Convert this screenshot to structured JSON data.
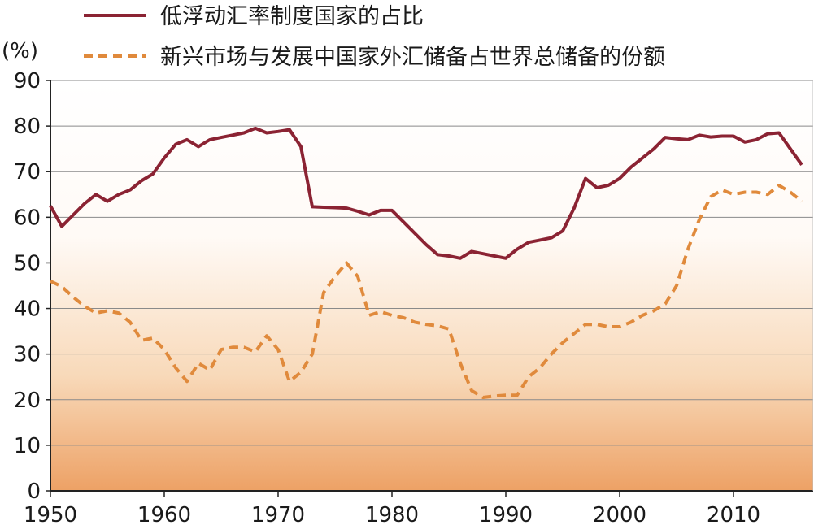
{
  "chart_data": {
    "type": "line",
    "unit_label": "(%)",
    "xlim": [
      1950,
      2017
    ],
    "ylim": [
      0,
      90
    ],
    "x_ticks": [
      1950,
      1960,
      1970,
      1980,
      1990,
      2000,
      2010
    ],
    "y_ticks": [
      0,
      10,
      20,
      30,
      40,
      50,
      60,
      70,
      80,
      90
    ],
    "grid": true,
    "legend_position": "top",
    "background": "gradient-orange-bottom",
    "series": [
      {
        "name": "低浮动汇率制度国家的占比",
        "color": "#8b2333",
        "style": "solid",
        "x": [
          1950,
          1951,
          1952,
          1953,
          1954,
          1955,
          1956,
          1957,
          1958,
          1959,
          1960,
          1961,
          1962,
          1963,
          1964,
          1965,
          1966,
          1967,
          1968,
          1969,
          1970,
          1971,
          1972,
          1973,
          1974,
          1975,
          1976,
          1977,
          1978,
          1979,
          1980,
          1981,
          1982,
          1983,
          1984,
          1985,
          1986,
          1987,
          1988,
          1989,
          1990,
          1991,
          1992,
          1993,
          1994,
          1995,
          1996,
          1997,
          1998,
          1999,
          2000,
          2001,
          2002,
          2003,
          2004,
          2005,
          2006,
          2007,
          2008,
          2009,
          2010,
          2011,
          2012,
          2013,
          2014,
          2015,
          2016
        ],
        "y": [
          62.5,
          58,
          60.5,
          63,
          65,
          63.5,
          65,
          66,
          68,
          69.5,
          73,
          76,
          77,
          75.5,
          77,
          77.5,
          78,
          78.5,
          79.5,
          78.5,
          78.8,
          79.2,
          75.5,
          62.3,
          62.2,
          62.1,
          62,
          61.3,
          60.5,
          61.5,
          61.5,
          59,
          56.5,
          54,
          51.8,
          51.5,
          51,
          52.5,
          52,
          51.5,
          51,
          53,
          54.5,
          55,
          55.5,
          57,
          62,
          68.5,
          66.5,
          67,
          68.5,
          71,
          73,
          75,
          77.5,
          77.2,
          77,
          78,
          77.6,
          77.8,
          77.8,
          76.5,
          77,
          78.3,
          78.5,
          75,
          71.5
        ]
      },
      {
        "name": "新兴市场与发展中国家外汇储备占世界总储备的份额",
        "color": "#e08a3c",
        "style": "dashed",
        "x": [
          1950,
          1951,
          1952,
          1953,
          1954,
          1955,
          1956,
          1957,
          1958,
          1959,
          1960,
          1961,
          1962,
          1963,
          1964,
          1965,
          1966,
          1967,
          1968,
          1969,
          1970,
          1971,
          1972,
          1973,
          1974,
          1975,
          1976,
          1977,
          1978,
          1979,
          1980,
          1981,
          1982,
          1983,
          1984,
          1985,
          1986,
          1987,
          1988,
          1989,
          1990,
          1991,
          1992,
          1993,
          1994,
          1995,
          1996,
          1997,
          1998,
          1999,
          2000,
          2001,
          2002,
          2003,
          2004,
          2005,
          2006,
          2007,
          2008,
          2009,
          2010,
          2011,
          2012,
          2013,
          2014,
          2015,
          2016
        ],
        "y": [
          46,
          44.8,
          42.5,
          40.5,
          39,
          39.5,
          39,
          37,
          33,
          33.5,
          31,
          27,
          24,
          28,
          26.5,
          31,
          31.5,
          31.5,
          30.5,
          34,
          31,
          24,
          26,
          30,
          43.5,
          47,
          50,
          47,
          38.5,
          39.3,
          38.5,
          38,
          37,
          36.5,
          36.2,
          35.5,
          28,
          22,
          20.5,
          20.8,
          21,
          21,
          25,
          27,
          30,
          32.5,
          34.5,
          36.5,
          36.5,
          36,
          36,
          37,
          38.5,
          39.5,
          41,
          45,
          53,
          59.5,
          64.5,
          66,
          65,
          65.5,
          65.5,
          65,
          67,
          65.5,
          63.5
        ]
      }
    ]
  }
}
